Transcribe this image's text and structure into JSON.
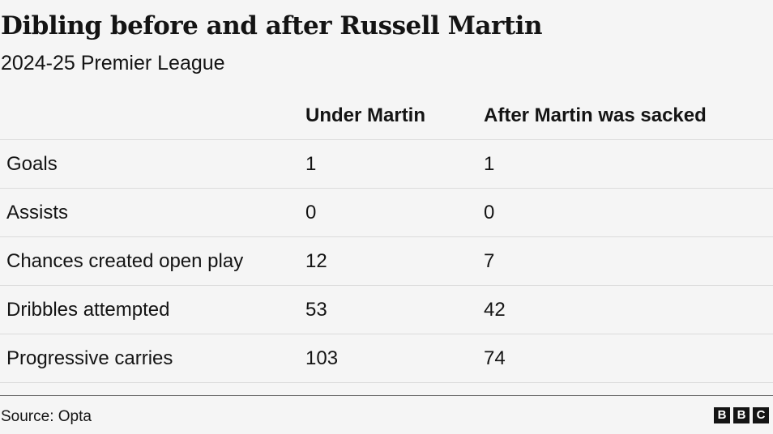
{
  "chart_data": {
    "type": "table",
    "title": "Dibling before and after Russell Martin",
    "subtitle": "2024-25 Premier League",
    "columns": [
      "",
      "Under Martin",
      "After Martin was sacked"
    ],
    "rows": [
      {
        "metric": "Goals",
        "under": "1",
        "after": "1"
      },
      {
        "metric": "Assists",
        "under": "0",
        "after": "0"
      },
      {
        "metric": "Chances created open play",
        "under": "12",
        "after": "7"
      },
      {
        "metric": "Dribbles attempted",
        "under": "53",
        "after": "42"
      },
      {
        "metric": "Progressive carries",
        "under": "103",
        "after": "74"
      }
    ]
  },
  "footer": {
    "source": "Source: Opta",
    "logo_letters": [
      "B",
      "B",
      "C"
    ]
  }
}
